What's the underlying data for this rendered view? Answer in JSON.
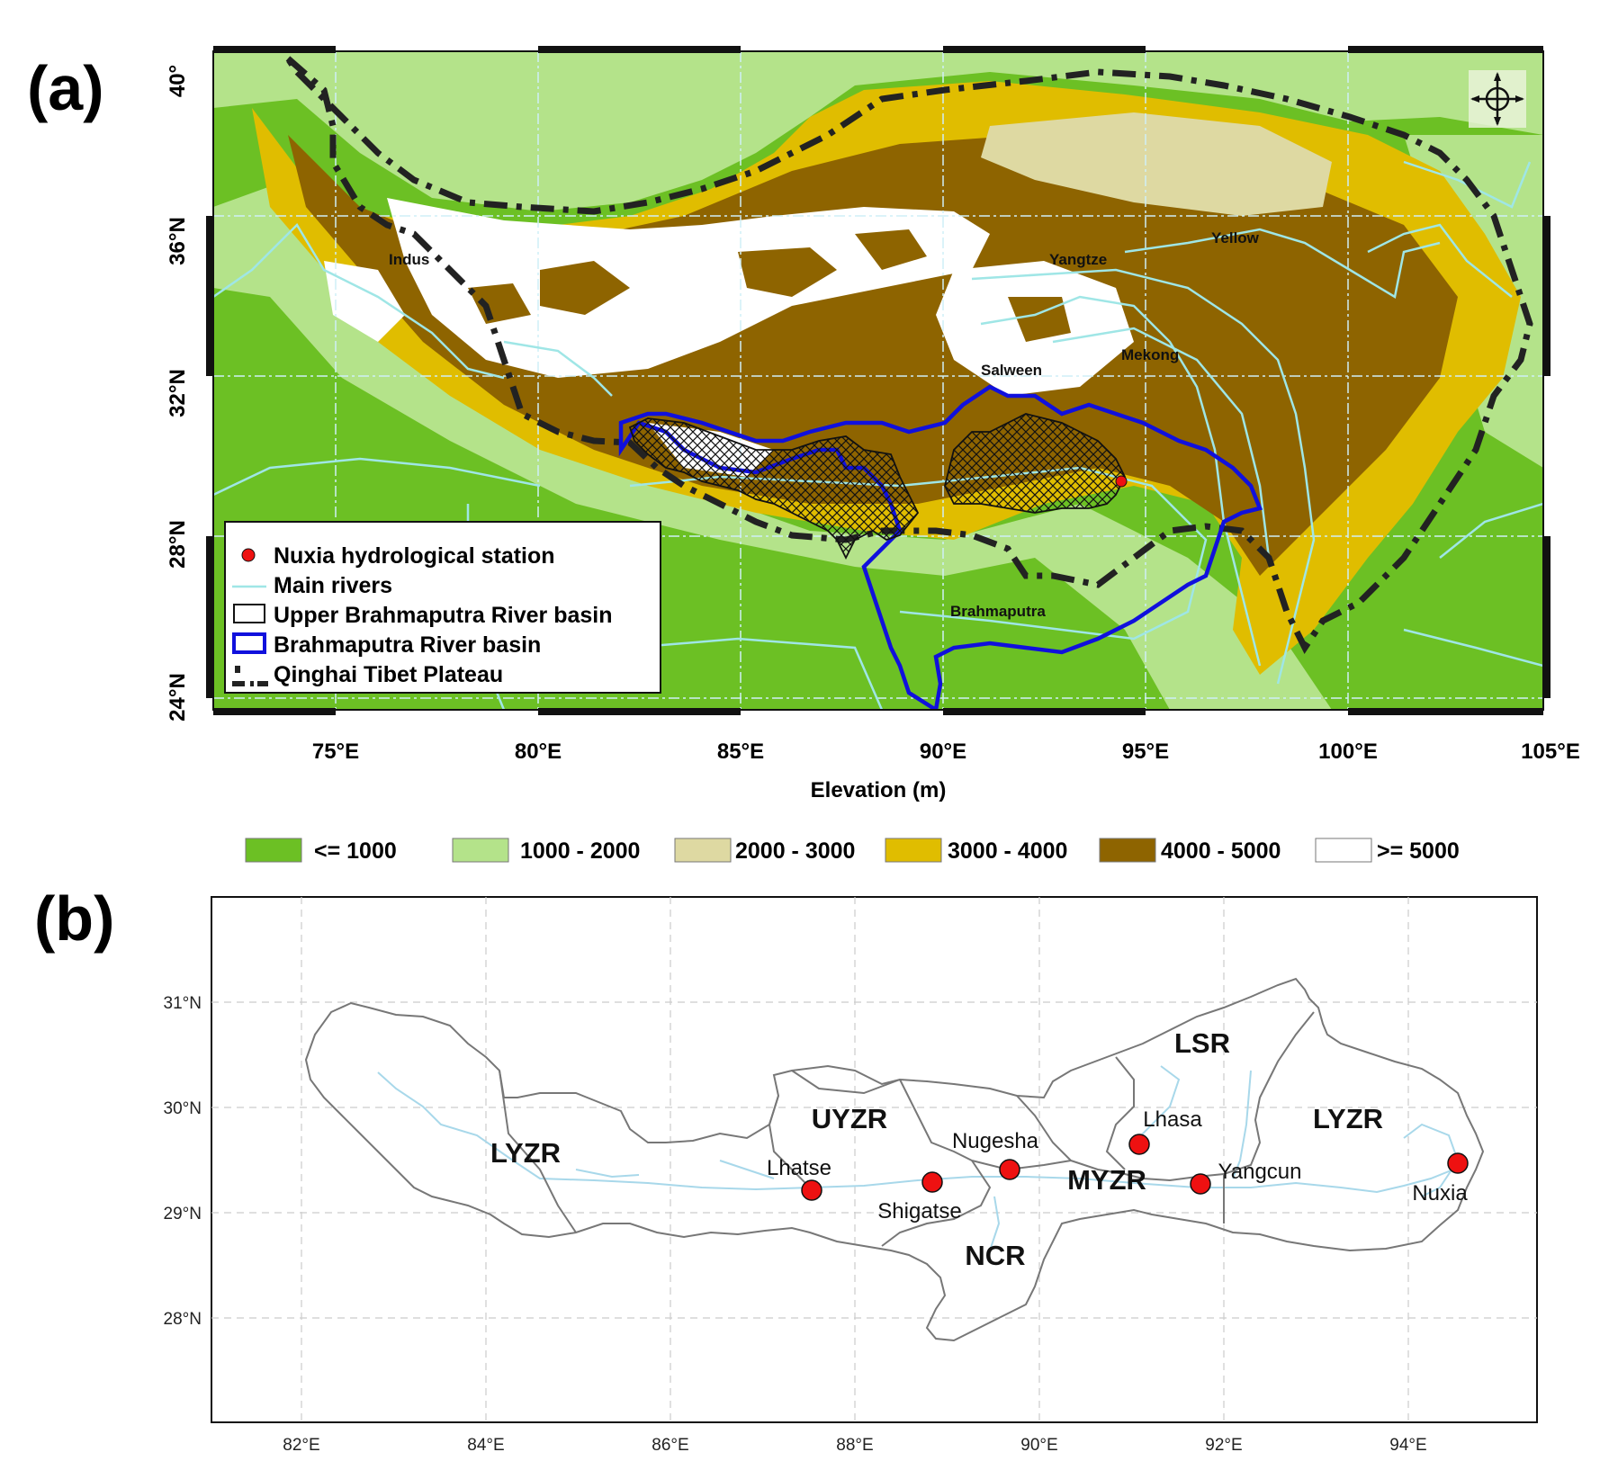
{
  "panel_a": {
    "label": "(a)",
    "lon_ticks": [
      "75°E",
      "80°E",
      "85°E",
      "90°E",
      "95°E",
      "100°E",
      "105°E"
    ],
    "lat_ticks": [
      "40°",
      "36°N",
      "32°N",
      "28°N",
      "24°N"
    ],
    "xlabel": "Elevation (m)",
    "rivers": [
      "Indus",
      "Yangtze",
      "Yellow",
      "Salween",
      "Mekong",
      "Brahmaputra"
    ],
    "legend": [
      {
        "key": "station",
        "label": "Nuxia hydrological station"
      },
      {
        "key": "rivers",
        "label": "Main rivers"
      },
      {
        "key": "upper",
        "label": "Upper Brahmaputra River basin"
      },
      {
        "key": "basin",
        "label": "Brahmaputra River basin"
      },
      {
        "key": "plateau",
        "label": "Qinghai Tibet Plateau"
      }
    ],
    "elevation_classes": [
      {
        "label": "<= 1000",
        "color": "#6cc024"
      },
      {
        "label": "1000 - 2000",
        "color": "#b4e38a"
      },
      {
        "label": "2000 - 3000",
        "color": "#ded9a2"
      },
      {
        "label": "3000 - 4000",
        "color": "#e0bd00"
      },
      {
        "label": "4000 - 5000",
        "color": "#8e6400"
      },
      {
        "label": ">= 5000",
        "color": "#ffffff"
      }
    ],
    "colors": {
      "river": "#9fe6e6",
      "basin": "#1010dd",
      "plateau": "#222222",
      "station": "#ee1111"
    }
  },
  "panel_b": {
    "label": "(b)",
    "lon_ticks": [
      "82°E",
      "84°E",
      "86°E",
      "88°E",
      "90°E",
      "92°E",
      "94°E"
    ],
    "lat_ticks": [
      "31°N",
      "30°N",
      "29°N",
      "28°N"
    ],
    "regions": [
      "LYZR",
      "UYZR",
      "LSR",
      "MYZR",
      "NCR",
      "LYZR"
    ],
    "stations": [
      {
        "name": "Lhatse",
        "lon": 87.55,
        "lat": 29.2
      },
      {
        "name": "Shigatse",
        "lon": 88.88,
        "lat": 29.27
      },
      {
        "name": "Nugesha",
        "lon": 89.72,
        "lat": 29.39
      },
      {
        "name": "Lhasa",
        "lon": 91.13,
        "lat": 29.64
      },
      {
        "name": "Yangcun",
        "lon": 91.82,
        "lat": 29.25
      },
      {
        "name": "Nuxia",
        "lon": 94.65,
        "lat": 29.45
      }
    ],
    "colors": {
      "station": "#ee1111",
      "boundary": "#777777",
      "river": "#a8d8ea"
    }
  }
}
